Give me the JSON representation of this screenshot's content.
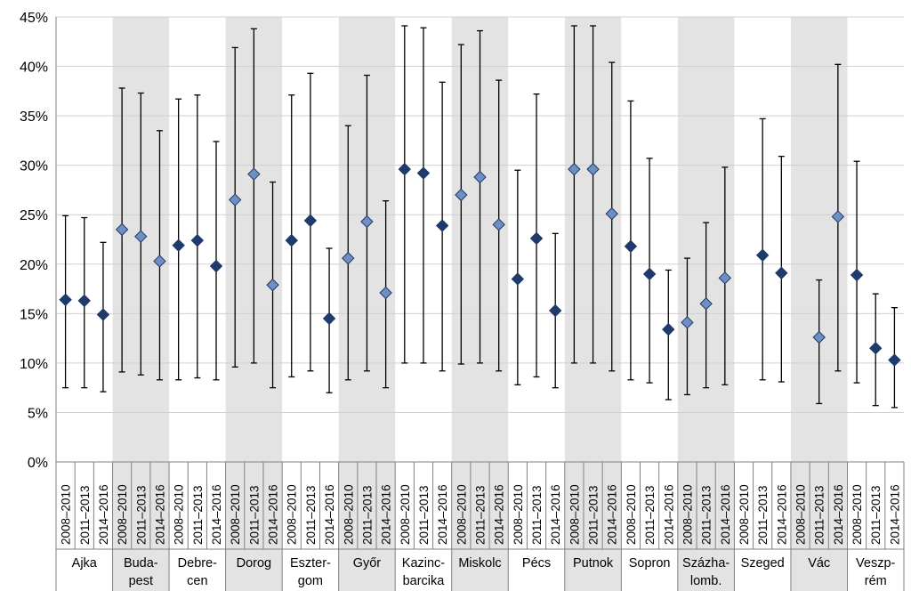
{
  "chart_data": {
    "type": "scatter",
    "subtype": "point-with-error-bars",
    "title": "",
    "xlabel": "",
    "ylabel": "",
    "ylim": [
      0,
      45
    ],
    "yticks": [
      "0%",
      "5%",
      "10%",
      "15%",
      "20%",
      "25%",
      "30%",
      "35%",
      "40%",
      "45%"
    ],
    "y_unit": "%",
    "grid": "horizontal",
    "legend": "none",
    "periods": [
      "2008–2010",
      "2011–2013",
      "2014–2016"
    ],
    "colors": {
      "dark_marker": "#1f3b6e",
      "light_marker": "#6f8fc4",
      "marker_edge": "#203864",
      "shaded_band": "#e3e3e3",
      "gridline": "#d0d0d0",
      "whisker": "#000000"
    },
    "groups": [
      {
        "label": [
          "Ajka"
        ],
        "shaded": false,
        "points": [
          {
            "period": "2008–2010",
            "value": 16.4,
            "low": 7.5,
            "high": 24.9,
            "marker": "dark"
          },
          {
            "period": "2011–2013",
            "value": 16.3,
            "low": 7.5,
            "high": 24.7,
            "marker": "dark"
          },
          {
            "period": "2014–2016",
            "value": 14.9,
            "low": 7.1,
            "high": 22.2,
            "marker": "dark"
          }
        ]
      },
      {
        "label": [
          "Buda-",
          "pest"
        ],
        "shaded": true,
        "points": [
          {
            "period": "2008–2010",
            "value": 23.5,
            "low": 9.1,
            "high": 37.8,
            "marker": "light"
          },
          {
            "period": "2011–2013",
            "value": 22.8,
            "low": 8.8,
            "high": 37.3,
            "marker": "light"
          },
          {
            "period": "2014–2016",
            "value": 20.3,
            "low": 8.3,
            "high": 33.5,
            "marker": "light"
          }
        ]
      },
      {
        "label": [
          "Debre-",
          "cen"
        ],
        "shaded": false,
        "points": [
          {
            "period": "2008–2010",
            "value": 21.9,
            "low": 8.3,
            "high": 36.7,
            "marker": "dark"
          },
          {
            "period": "2011–2013",
            "value": 22.4,
            "low": 8.5,
            "high": 37.1,
            "marker": "dark"
          },
          {
            "period": "2014–2016",
            "value": 19.8,
            "low": 8.3,
            "high": 32.4,
            "marker": "dark"
          }
        ]
      },
      {
        "label": [
          "Dorog"
        ],
        "shaded": true,
        "points": [
          {
            "period": "2008–2010",
            "value": 26.5,
            "low": 9.6,
            "high": 41.9,
            "marker": "light"
          },
          {
            "period": "2011–2013",
            "value": 29.1,
            "low": 10.0,
            "high": 43.8,
            "marker": "light"
          },
          {
            "period": "2014–2016",
            "value": 17.9,
            "low": 7.5,
            "high": 28.3,
            "marker": "light"
          }
        ]
      },
      {
        "label": [
          "Eszter-",
          "gom"
        ],
        "shaded": false,
        "points": [
          {
            "period": "2008–2010",
            "value": 22.4,
            "low": 8.6,
            "high": 37.1,
            "marker": "dark"
          },
          {
            "period": "2011–2013",
            "value": 24.4,
            "low": 9.2,
            "high": 39.3,
            "marker": "dark"
          },
          {
            "period": "2014–2016",
            "value": 14.5,
            "low": 7.0,
            "high": 21.6,
            "marker": "dark"
          }
        ]
      },
      {
        "label": [
          "Győr"
        ],
        "shaded": true,
        "points": [
          {
            "period": "2008–2010",
            "value": 20.6,
            "low": 8.3,
            "high": 34.0,
            "marker": "light"
          },
          {
            "period": "2011–2013",
            "value": 24.3,
            "low": 9.2,
            "high": 39.1,
            "marker": "light"
          },
          {
            "period": "2014–2016",
            "value": 17.1,
            "low": 7.5,
            "high": 26.4,
            "marker": "light"
          }
        ]
      },
      {
        "label": [
          "Kazinc-",
          "barcika"
        ],
        "shaded": false,
        "points": [
          {
            "period": "2008–2010",
            "value": 29.6,
            "low": 10.0,
            "high": 44.1,
            "marker": "dark"
          },
          {
            "period": "2011–2013",
            "value": 29.2,
            "low": 10.0,
            "high": 43.9,
            "marker": "dark"
          },
          {
            "period": "2014–2016",
            "value": 23.9,
            "low": 9.2,
            "high": 38.4,
            "marker": "dark"
          }
        ]
      },
      {
        "label": [
          "Miskolc"
        ],
        "shaded": true,
        "points": [
          {
            "period": "2008–2010",
            "value": 27.0,
            "low": 9.9,
            "high": 42.2,
            "marker": "light"
          },
          {
            "period": "2011–2013",
            "value": 28.8,
            "low": 10.0,
            "high": 43.6,
            "marker": "light"
          },
          {
            "period": "2014–2016",
            "value": 24.0,
            "low": 9.2,
            "high": 38.6,
            "marker": "light"
          }
        ]
      },
      {
        "label": [
          "Pécs"
        ],
        "shaded": false,
        "points": [
          {
            "period": "2008–2010",
            "value": 18.5,
            "low": 7.8,
            "high": 29.5,
            "marker": "dark"
          },
          {
            "period": "2011–2013",
            "value": 22.6,
            "low": 8.6,
            "high": 37.2,
            "marker": "dark"
          },
          {
            "period": "2014–2016",
            "value": 15.3,
            "low": 7.5,
            "high": 23.1,
            "marker": "dark"
          }
        ]
      },
      {
        "label": [
          "Putnok"
        ],
        "shaded": true,
        "points": [
          {
            "period": "2008–2010",
            "value": 29.6,
            "low": 10.0,
            "high": 44.1,
            "marker": "light"
          },
          {
            "period": "2011–2013",
            "value": 29.6,
            "low": 10.0,
            "high": 44.1,
            "marker": "light"
          },
          {
            "period": "2014–2016",
            "value": 25.1,
            "low": 9.2,
            "high": 40.4,
            "marker": "light"
          }
        ]
      },
      {
        "label": [
          "Sopron"
        ],
        "shaded": false,
        "points": [
          {
            "period": "2008–2010",
            "value": 21.8,
            "low": 8.3,
            "high": 36.5,
            "marker": "dark"
          },
          {
            "period": "2011–2013",
            "value": 19.0,
            "low": 8.0,
            "high": 30.7,
            "marker": "dark"
          },
          {
            "period": "2014–2016",
            "value": 13.4,
            "low": 6.3,
            "high": 19.4,
            "marker": "dark"
          }
        ]
      },
      {
        "label": [
          "Százha-",
          "lomb."
        ],
        "shaded": true,
        "points": [
          {
            "period": "2008–2010",
            "value": 14.1,
            "low": 6.8,
            "high": 20.6,
            "marker": "light"
          },
          {
            "period": "2011–2013",
            "value": 16.0,
            "low": 7.5,
            "high": 24.2,
            "marker": "light"
          },
          {
            "period": "2014–2016",
            "value": 18.6,
            "low": 7.8,
            "high": 29.8,
            "marker": "light"
          }
        ]
      },
      {
        "label": [
          "Szeged"
        ],
        "shaded": false,
        "points": [
          {
            "period": "2008–2010",
            "value": null,
            "low": null,
            "high": null,
            "marker": "dark"
          },
          {
            "period": "2011–2013",
            "value": 20.9,
            "low": 8.3,
            "high": 34.7,
            "marker": "dark"
          },
          {
            "period": "2014–2016",
            "value": 19.1,
            "low": 8.1,
            "high": 30.9,
            "marker": "dark"
          }
        ]
      },
      {
        "label": [
          "Vác"
        ],
        "shaded": true,
        "points": [
          {
            "period": "2008–2010",
            "value": null,
            "low": null,
            "high": null,
            "marker": "light"
          },
          {
            "period": "2011–2013",
            "value": 12.6,
            "low": 5.9,
            "high": 18.4,
            "marker": "light"
          },
          {
            "period": "2014–2016",
            "value": 24.8,
            "low": 9.2,
            "high": 40.2,
            "marker": "light"
          }
        ]
      },
      {
        "label": [
          "Veszp-",
          "rém"
        ],
        "shaded": false,
        "points": [
          {
            "period": "2008–2010",
            "value": 18.9,
            "low": 8.0,
            "high": 30.4,
            "marker": "dark"
          },
          {
            "period": "2011–2013",
            "value": 11.5,
            "low": 5.7,
            "high": 17.0,
            "marker": "dark"
          },
          {
            "period": "2014–2016",
            "value": 10.3,
            "low": 5.5,
            "high": 15.6,
            "marker": "dark"
          }
        ]
      }
    ]
  }
}
